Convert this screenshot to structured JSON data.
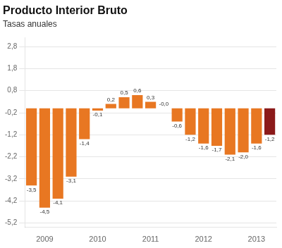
{
  "chart_data": {
    "type": "bar",
    "title": "Producto Interior Bruto",
    "subtitle": "Tasas anuales",
    "categories": [
      null,
      "2009",
      null,
      null,
      null,
      "2010",
      null,
      null,
      null,
      "2011",
      null,
      null,
      null,
      "2012",
      null,
      null,
      null,
      "2013",
      null
    ],
    "values": [
      -3.5,
      -4.5,
      -4.1,
      -3.1,
      -1.4,
      -0.1,
      0.2,
      0.5,
      0.6,
      0.3,
      0.0,
      -0.6,
      -1.2,
      -1.6,
      -1.7,
      -2.1,
      -2.0,
      -1.6,
      -1.2
    ],
    "value_labels": [
      "-3,5",
      "-4,5",
      "-4,1",
      "-3,1",
      "-1,4",
      "-0,1",
      "0,2",
      "0,5",
      "0,6",
      "0,3",
      "-0,0",
      "-0,6",
      "-1,2",
      "-1,6",
      "-1,7",
      "-2,1",
      "-2,0",
      "-1,6",
      "-1,2"
    ],
    "data_labels": true,
    "colors": [
      "#E87722",
      "#E87722",
      "#E87722",
      "#E87722",
      "#E87722",
      "#E87722",
      "#E87722",
      "#E87722",
      "#E87722",
      "#E87722",
      "#E87722",
      "#E87722",
      "#E87722",
      "#E87722",
      "#E87722",
      "#E87722",
      "#E87722",
      "#E87722",
      "#8B1A1A"
    ],
    "ylim": [
      -5.4,
      3.2
    ],
    "yticks": [
      {
        "value": -5.2,
        "label": "-5,2"
      },
      {
        "value": -4.2,
        "label": "-4,2"
      },
      {
        "value": -3.2,
        "label": "-3,2"
      },
      {
        "value": -2.2,
        "label": "-2,2"
      },
      {
        "value": -1.2,
        "label": "-1,2"
      },
      {
        "value": -0.2,
        "label": "-0,2"
      },
      {
        "value": 0.8,
        "label": "0,8"
      },
      {
        "value": 1.8,
        "label": "1,8"
      },
      {
        "value": 2.8,
        "label": "2,8"
      }
    ],
    "grid": true
  }
}
